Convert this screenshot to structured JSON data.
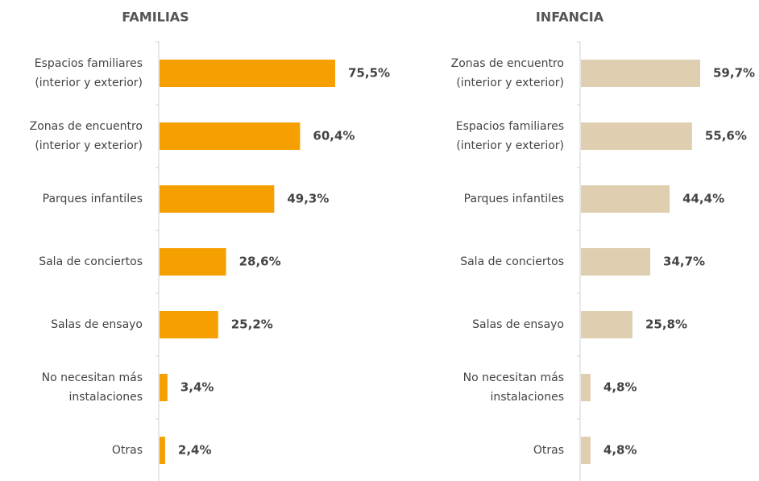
{
  "chart_data": [
    {
      "type": "hbar",
      "title": "FAMILIAS",
      "color": "#f5a000",
      "categories": [
        "Espacios familiares\n(interior y exterior)",
        "Zonas de encuentro\n(interior y exterior)",
        "Parques infantiles",
        "Sala de conciertos",
        "Salas de ensayo",
        "No necesitan más\ninstalaciones",
        "Otras"
      ],
      "values": [
        75.5,
        60.4,
        49.3,
        28.6,
        25.2,
        3.4,
        2.4
      ],
      "value_labels": [
        "75,5%",
        "60,4%",
        "49,3%",
        "28,6%",
        "25,2%",
        "3,4%",
        "2,4%"
      ]
    },
    {
      "type": "hbar",
      "title": "INFANCIA",
      "color": "#dfceaf",
      "categories": [
        "Zonas de encuentro\n(interior y exterior)",
        "Espacios familiares\n(interior y exterior)",
        "Parques infantiles",
        "Sala de conciertos",
        "Salas de ensayo",
        "No necesitan más\ninstalaciones",
        "Otras"
      ],
      "values": [
        59.7,
        55.6,
        44.4,
        34.7,
        25.8,
        4.8,
        4.8
      ],
      "value_labels": [
        "59,7%",
        "55,6%",
        "44,4%",
        "34,7%",
        "25,8%",
        "4,8%",
        "4,8%"
      ]
    }
  ]
}
